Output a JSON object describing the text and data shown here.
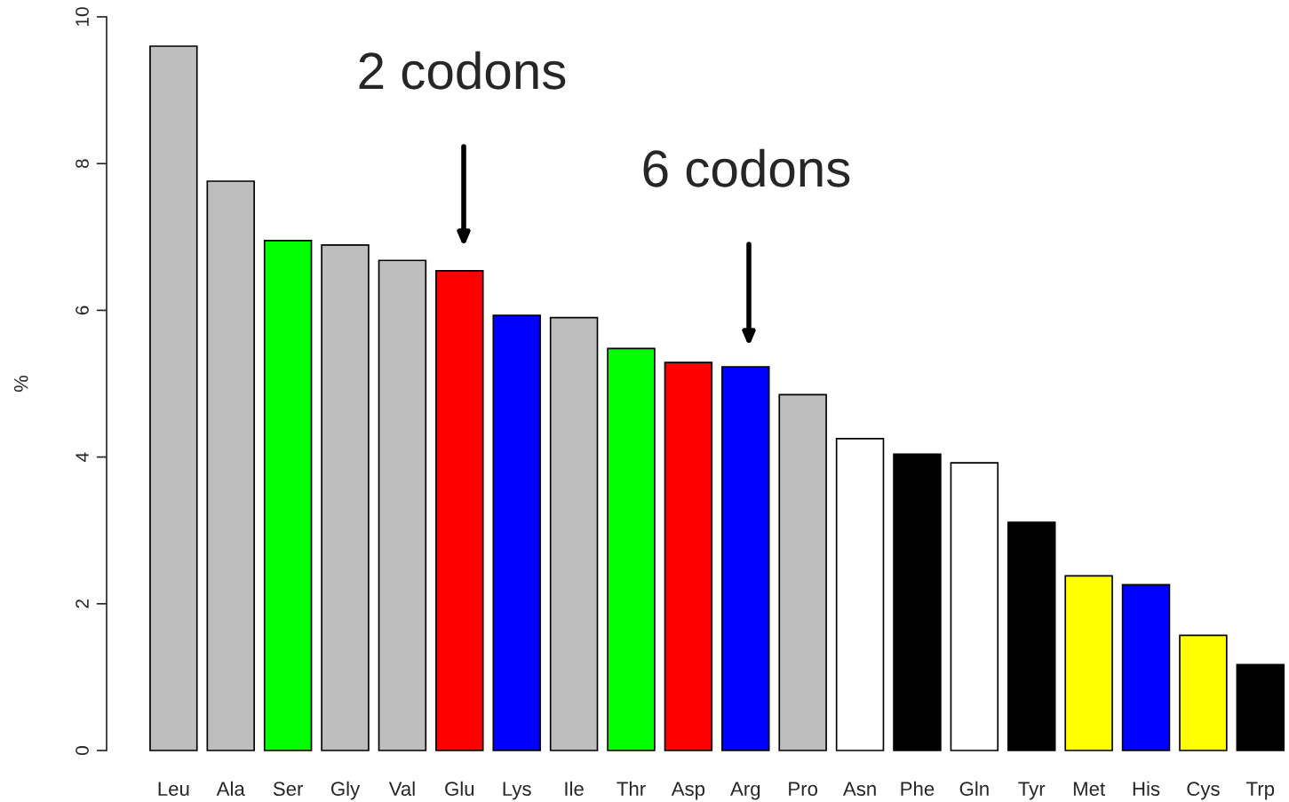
{
  "chart_data": {
    "type": "bar",
    "ylabel": "%",
    "categories": [
      "Leu",
      "Ala",
      "Ser",
      "Gly",
      "Val",
      "Glu",
      "Lys",
      "Ile",
      "Thr",
      "Asp",
      "Arg",
      "Pro",
      "Asn",
      "Phe",
      "Gln",
      "Tyr",
      "Met",
      "His",
      "Cys",
      "Trp"
    ],
    "values": [
      9.6,
      7.76,
      6.95,
      6.89,
      6.68,
      6.54,
      5.93,
      5.9,
      5.48,
      5.29,
      5.23,
      4.85,
      4.25,
      4.04,
      3.92,
      3.11,
      2.38,
      2.26,
      1.57,
      1.17
    ],
    "colors": [
      "#bebebe",
      "#bebebe",
      "#00ff00",
      "#bebebe",
      "#bebebe",
      "#ff0000",
      "#0000ff",
      "#bebebe",
      "#00ff00",
      "#ff0000",
      "#0000ff",
      "#bebebe",
      "#ffffff",
      "#000000",
      "#ffffff",
      "#000000",
      "#ffff00",
      "#0000ff",
      "#ffff00",
      "#000000"
    ],
    "ylim": [
      0,
      10
    ],
    "yticks": [
      0,
      2,
      4,
      6,
      8,
      10
    ],
    "grid": false,
    "annotations": [
      "2 codons",
      "6 codons"
    ]
  }
}
